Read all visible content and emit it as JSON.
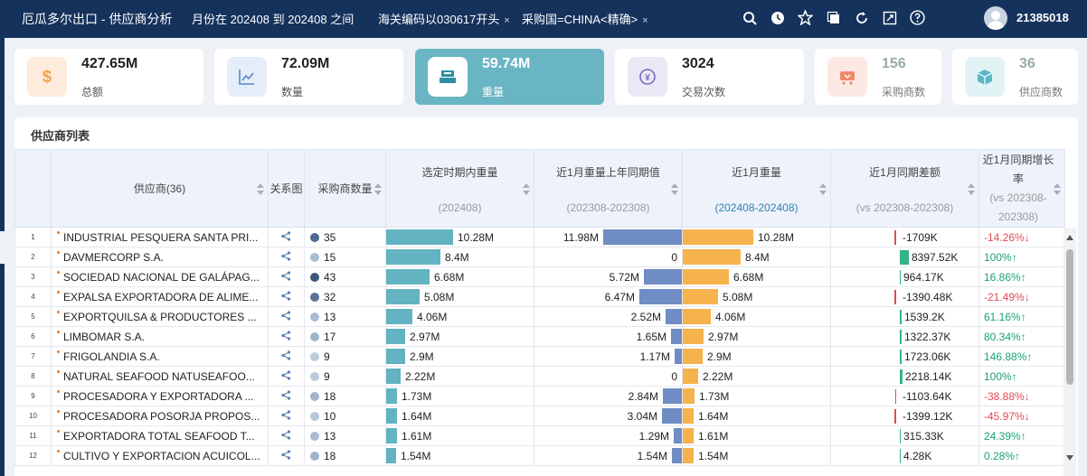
{
  "header": {
    "title": "厄瓜多尔出口 - 供应商分析",
    "filters": [
      {
        "label": "月份在 202408 到 202408 之间"
      },
      {
        "label": "海关编码以030617开头"
      },
      {
        "label": "采购国=CHINA<精确>"
      }
    ],
    "close_glyph": "×",
    "user": "21385018"
  },
  "cards": [
    {
      "value": "427.65M",
      "label": "总额",
      "icon": "dollar-icon"
    },
    {
      "value": "72.09M",
      "label": "数量",
      "icon": "trend-chart-icon"
    },
    {
      "value": "59.74M",
      "label": "重量",
      "icon": "scale-icon"
    },
    {
      "value": "3024",
      "label": "交易次数",
      "icon": "exchange-icon"
    },
    {
      "value": "156",
      "label": "采购商数",
      "icon": "cart-icon"
    },
    {
      "value": "36",
      "label": "供应商数",
      "icon": "package-icon"
    }
  ],
  "table": {
    "title": "供应商列表",
    "headers": {
      "supplier": "供应商(36)",
      "relation": "关系图",
      "buyers": "采购商数量",
      "weight_period": "选定时期内重量",
      "weight_period_sub": "(202408)",
      "prev_year": "近1月重量上年同期值",
      "prev_year_sub": "(202308-202308)",
      "recent": "近1月重量",
      "recent_sub": "(202408-202408)",
      "diff": "近1月同期差额",
      "diff_sub": "(vs 202308-202308)",
      "growth": "近1月同期增长率",
      "growth_sub": "(vs 202308-202308)"
    },
    "rows": [
      {
        "idx": "1",
        "name": "INDUSTRIAL PESQUERA SANTA PRI...",
        "buyers": "35",
        "buyer_color": "#4d6a8f",
        "period": 10.28,
        "period_label": "10.28M",
        "prev": 11.98,
        "prev_label": "11.98M",
        "recent": 10.28,
        "recent_label": "10.28M",
        "diff": -1709,
        "diff_label": "-1709K",
        "growth": "-14.26%↓",
        "trend": "down"
      },
      {
        "idx": "2",
        "name": "DAVMERCORP S.A.",
        "buyers": "15",
        "buyer_color": "#a9bdd2",
        "period": 8.4,
        "period_label": "8.4M",
        "prev": 0,
        "prev_label": "0",
        "recent": 8.4,
        "recent_label": "8.4M",
        "diff": 8397.52,
        "diff_label": "8397.52K",
        "growth": "100%↑",
        "trend": "up"
      },
      {
        "idx": "3",
        "name": "SOCIEDAD NACIONAL DE GALÁPAG...",
        "buyers": "43",
        "buyer_color": "#3b5878",
        "period": 6.68,
        "period_label": "6.68M",
        "prev": 5.72,
        "prev_label": "5.72M",
        "recent": 6.68,
        "recent_label": "6.68M",
        "diff": 964.17,
        "diff_label": "964.17K",
        "growth": "16.86%↑",
        "trend": "up"
      },
      {
        "idx": "4",
        "name": "EXPALSA EXPORTADORA DE ALIME...",
        "buyers": "32",
        "buyer_color": "#587395",
        "period": 5.08,
        "period_label": "5.08M",
        "prev": 6.47,
        "prev_label": "6.47M",
        "recent": 5.08,
        "recent_label": "5.08M",
        "diff": -1390.48,
        "diff_label": "-1390.48K",
        "growth": "-21.49%↓",
        "trend": "down"
      },
      {
        "idx": "5",
        "name": "EXPORTQUILSA & PRODUCTORES ...",
        "buyers": "13",
        "buyer_color": "#a9bdd2",
        "period": 4.06,
        "period_label": "4.06M",
        "prev": 2.52,
        "prev_label": "2.52M",
        "recent": 4.06,
        "recent_label": "4.06M",
        "diff": 1539.2,
        "diff_label": "1539.2K",
        "growth": "61.16%↑",
        "trend": "up"
      },
      {
        "idx": "6",
        "name": "LIMBOMAR S.A.",
        "buyers": "17",
        "buyer_color": "#9fb4cb",
        "period": 2.97,
        "period_label": "2.97M",
        "prev": 1.65,
        "prev_label": "1.65M",
        "recent": 2.97,
        "recent_label": "2.97M",
        "diff": 1322.37,
        "diff_label": "1322.37K",
        "growth": "80.34%↑",
        "trend": "up"
      },
      {
        "idx": "7",
        "name": "FRIGOLANDIA S.A.",
        "buyers": "9",
        "buyer_color": "#bccbdb",
        "period": 2.9,
        "period_label": "2.9M",
        "prev": 1.17,
        "prev_label": "1.17M",
        "recent": 2.9,
        "recent_label": "2.9M",
        "diff": 1723.06,
        "diff_label": "1723.06K",
        "growth": "146.88%↑",
        "trend": "up"
      },
      {
        "idx": "8",
        "name": "NATURAL SEAFOOD NATUSEAFOO...",
        "buyers": "9",
        "buyer_color": "#bccbdb",
        "period": 2.22,
        "period_label": "2.22M",
        "prev": 0,
        "prev_label": "0",
        "recent": 2.22,
        "recent_label": "2.22M",
        "diff": 2218.14,
        "diff_label": "2218.14K",
        "growth": "100%↑",
        "trend": "up"
      },
      {
        "idx": "9",
        "name": "PROCESADORA Y EXPORTADORA ...",
        "buyers": "18",
        "buyer_color": "#9fb4cb",
        "period": 1.73,
        "period_label": "1.73M",
        "prev": 2.84,
        "prev_label": "2.84M",
        "recent": 1.73,
        "recent_label": "1.73M",
        "diff": -1103.64,
        "diff_label": "-1103.64K",
        "growth": "-38.88%↓",
        "trend": "down"
      },
      {
        "idx": "10",
        "name": "PROCESADORA POSORJA PROPOS...",
        "buyers": "10",
        "buyer_color": "#b8c8da",
        "period": 1.64,
        "period_label": "1.64M",
        "prev": 3.04,
        "prev_label": "3.04M",
        "recent": 1.64,
        "recent_label": "1.64M",
        "diff": -1399.12,
        "diff_label": "-1399.12K",
        "growth": "-45.97%↓",
        "trend": "down"
      },
      {
        "idx": "11",
        "name": "EXPORTADORA TOTAL SEAFOOD T...",
        "buyers": "13",
        "buyer_color": "#a9bdd2",
        "period": 1.61,
        "period_label": "1.61M",
        "prev": 1.29,
        "prev_label": "1.29M",
        "recent": 1.61,
        "recent_label": "1.61M",
        "diff": 315.33,
        "diff_label": "315.33K",
        "growth": "24.39%↑",
        "trend": "up"
      },
      {
        "idx": "12",
        "name": "CULTIVO Y EXPORTACION ACUICOL...",
        "buyers": "18",
        "buyer_color": "#9fb4cb",
        "period": 1.54,
        "period_label": "1.54M",
        "prev": 1.54,
        "prev_label": "1.54M",
        "recent": 1.54,
        "recent_label": "1.54M",
        "diff": 4.28,
        "diff_label": "4.28K",
        "growth": "0.28%↑",
        "trend": "up"
      }
    ]
  },
  "colors": {
    "period_bar": "#63b3c2",
    "prev_bar": "#6f8cc4",
    "recent_bar": "#f6b24c",
    "diff_up": "#34b38a",
    "diff_down": "#e24a55"
  }
}
